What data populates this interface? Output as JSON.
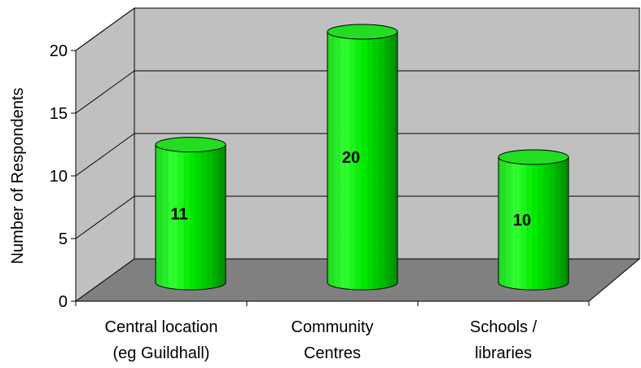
{
  "chart_data": {
    "type": "bar",
    "style": "3d-cylinder",
    "title": "",
    "xlabel": "",
    "ylabel": "Number of Respondents",
    "ylim": [
      0,
      20
    ],
    "yticks": [
      "0",
      "5",
      "10",
      "15",
      "20"
    ],
    "categories": [
      [
        "Central location",
        "(eg Guildhall)"
      ],
      [
        "Community",
        "Centres"
      ],
      [
        "Schools /",
        "libraries"
      ]
    ],
    "values": [
      11,
      20,
      10
    ],
    "data_labels": [
      "11",
      "20",
      "10"
    ],
    "grid": true,
    "legend": "none",
    "colors": {
      "bar": "#00ee00",
      "bar_dark": "#009900",
      "back_wall": "#c0c0c0",
      "floor": "#808080"
    }
  }
}
